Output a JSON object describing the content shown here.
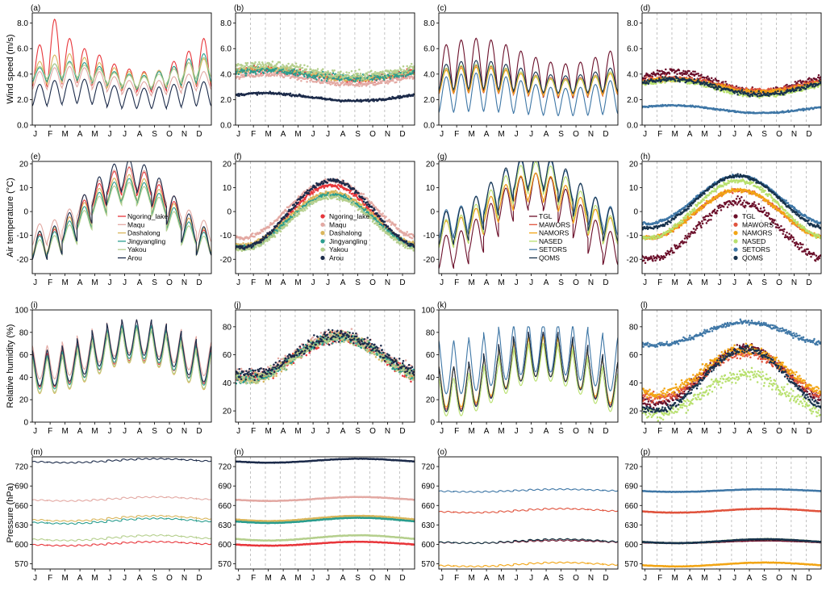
{
  "chart_data": {
    "type": "multi-panel",
    "months": [
      "J",
      "F",
      "M",
      "A",
      "M",
      "J",
      "J",
      "A",
      "S",
      "O",
      "N",
      "D"
    ],
    "stations_group1": [
      {
        "name": "Ngoring_lake",
        "color": "#e8363b"
      },
      {
        "name": "Maqu",
        "color": "#e3a9a3"
      },
      {
        "name": "Dashalong",
        "color": "#d9b65c"
      },
      {
        "name": "Jingyangling",
        "color": "#2a9d8f"
      },
      {
        "name": "Yakou",
        "color": "#b5cf8d"
      },
      {
        "name": "Arou",
        "color": "#1c2b4a"
      }
    ],
    "stations_group2": [
      {
        "name": "TGL",
        "color": "#6b0f2a"
      },
      {
        "name": "MAWORS",
        "color": "#e0533d"
      },
      {
        "name": "NAMORS",
        "color": "#f2a515"
      },
      {
        "name": "NASED",
        "color": "#b8e06e"
      },
      {
        "name": "SETORS",
        "color": "#3f77a6"
      },
      {
        "name": "QOMS",
        "color": "#17324d"
      }
    ],
    "rows": [
      {
        "ylabel": "Wind speed (m/s)",
        "ylim": [
          0,
          8.8
        ],
        "ticks": [
          "0.0",
          "2.0",
          "4.0",
          "6.0",
          "8.0"
        ],
        "tickvals": [
          0,
          2,
          4,
          6,
          8
        ]
      },
      {
        "ylabel": "Air temperature (°C)",
        "ylim": [
          -26,
          21
        ],
        "ticks": [
          "-20",
          "-10",
          "0",
          "10",
          "20"
        ],
        "tickvals": [
          -20,
          -10,
          0,
          10,
          20
        ]
      },
      {
        "ylabel": "Relative humidity (%)",
        "ylim": [
          0,
          100
        ],
        "ticks": [
          "0",
          "20",
          "40",
          "60",
          "80",
          "100"
        ],
        "tickvals": [
          0,
          20,
          40,
          60,
          80,
          100
        ]
      },
      {
        "ylabel": "Pressure (hPa)",
        "ylim": [
          562,
          735
        ],
        "ticks": [
          "570",
          "600",
          "630",
          "660",
          "690",
          "720"
        ],
        "tickvals": [
          570,
          600,
          630,
          660,
          690,
          720
        ]
      }
    ],
    "panel_overrides": {
      "b": {
        "ylim": [
          0,
          8.8
        ]
      },
      "j": {
        "ylim": [
          12,
          92
        ],
        "ticks": [
          "20",
          "40",
          "60",
          "80"
        ],
        "tickvals": [
          20,
          40,
          60,
          80
        ]
      },
      "l": {
        "ylim": [
          12,
          92
        ],
        "ticks": [
          "20",
          "40",
          "60",
          "80"
        ],
        "tickvals": [
          20,
          40,
          60,
          80
        ]
      }
    },
    "panels": [
      {
        "id": "a",
        "label": "(a)",
        "kind": "line",
        "group": 1,
        "row": 0
      },
      {
        "id": "b",
        "label": "(b)",
        "kind": "scatter",
        "group": 1,
        "row": 0
      },
      {
        "id": "c",
        "label": "(c)",
        "kind": "line",
        "group": 2,
        "row": 0
      },
      {
        "id": "d",
        "label": "(d)",
        "kind": "scatter",
        "group": 2,
        "row": 0
      },
      {
        "id": "e",
        "label": "(e)",
        "kind": "line",
        "group": 1,
        "row": 1,
        "legend": "bottom-center"
      },
      {
        "id": "f",
        "label": "(f)",
        "kind": "scatter",
        "group": 1,
        "row": 1,
        "legend": "bottom-center"
      },
      {
        "id": "g",
        "label": "(g)",
        "kind": "line",
        "group": 2,
        "row": 1,
        "legend": "bottom-center"
      },
      {
        "id": "h",
        "label": "(h)",
        "kind": "scatter",
        "group": 2,
        "row": 1,
        "legend": "bottom-right"
      },
      {
        "id": "i",
        "label": "(i)",
        "kind": "line",
        "group": 1,
        "row": 2
      },
      {
        "id": "j",
        "label": "(j)",
        "kind": "scatter",
        "group": 1,
        "row": 2
      },
      {
        "id": "k",
        "label": "(k)",
        "kind": "line",
        "group": 2,
        "row": 2
      },
      {
        "id": "l",
        "label": "(l)",
        "kind": "scatter",
        "group": 2,
        "row": 2
      },
      {
        "id": "m",
        "label": "(m)",
        "kind": "line",
        "group": 1,
        "row": 3
      },
      {
        "id": "n",
        "label": "(n)",
        "kind": "scatter",
        "group": 1,
        "row": 3
      },
      {
        "id": "o",
        "label": "(o)",
        "kind": "line",
        "group": 2,
        "row": 3
      },
      {
        "id": "p",
        "label": "(p)",
        "kind": "scatter",
        "group": 2,
        "row": 3
      }
    ],
    "diurnal_monthly_means": {
      "a": {
        "Ngoring_lake": {
          "base": [
            3.0,
            3.2,
            3.4,
            3.3,
            3.1,
            2.9,
            2.7,
            2.6,
            2.7,
            2.9,
            3.1,
            3.0
          ],
          "peak": [
            6.3,
            8.3,
            6.8,
            6.0,
            5.5,
            4.8,
            4.4,
            4.2,
            4.3,
            5.0,
            5.8,
            6.8
          ]
        },
        "Maqu": {
          "base": [
            2.8,
            2.9,
            3.0,
            3.0,
            2.8,
            2.6,
            2.4,
            2.3,
            2.4,
            2.5,
            2.7,
            2.8
          ],
          "peak": [
            4.2,
            4.5,
            4.6,
            4.5,
            4.2,
            3.8,
            3.5,
            3.4,
            3.5,
            3.8,
            4.0,
            4.2
          ]
        },
        "Dashalong": {
          "base": [
            3.2,
            3.3,
            3.5,
            3.4,
            3.2,
            2.9,
            2.8,
            2.8,
            2.9,
            3.0,
            3.2,
            3.3
          ],
          "peak": [
            5.0,
            5.5,
            5.6,
            5.3,
            4.9,
            4.5,
            4.2,
            4.1,
            4.3,
            4.6,
            4.9,
            5.2
          ]
        },
        "Jingyangling": {
          "base": [
            3.4,
            3.5,
            3.6,
            3.5,
            3.3,
            3.1,
            2.9,
            2.8,
            2.9,
            3.1,
            3.3,
            3.4
          ],
          "peak": [
            4.5,
            4.8,
            5.0,
            4.9,
            4.6,
            4.2,
            4.0,
            3.9,
            4.2,
            4.6,
            5.2,
            5.6
          ]
        },
        "Yakou": {
          "base": [
            3.6,
            3.7,
            3.8,
            3.7,
            3.4,
            3.2,
            3.0,
            2.9,
            3.0,
            3.3,
            3.6,
            3.8
          ],
          "peak": [
            4.6,
            4.8,
            4.9,
            4.7,
            4.4,
            4.1,
            3.9,
            3.8,
            4.0,
            4.4,
            4.9,
            5.3
          ]
        },
        "Arou": {
          "base": [
            1.5,
            1.6,
            1.7,
            1.7,
            1.6,
            1.4,
            1.3,
            1.3,
            1.3,
            1.4,
            1.5,
            1.5
          ],
          "peak": [
            3.2,
            3.5,
            3.6,
            3.6,
            3.4,
            3.1,
            2.9,
            2.9,
            3.0,
            3.2,
            3.4,
            3.4
          ]
        }
      }
    }
  }
}
